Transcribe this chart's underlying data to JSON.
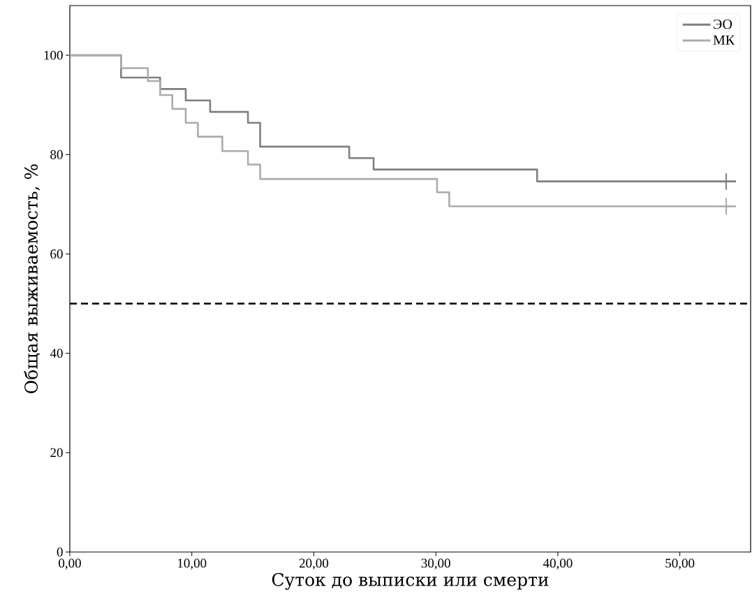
{
  "chart_data": {
    "type": "step",
    "xlabel": "Суток до выписки или смерти",
    "ylabel": "Общая выживаемость, %",
    "xlim": [
      0,
      55.8
    ],
    "ylim": [
      0,
      110
    ],
    "xticks": [
      {
        "value": 0,
        "label": "0,00"
      },
      {
        "value": 10,
        "label": "10,00"
      },
      {
        "value": 20,
        "label": "20,00"
      },
      {
        "value": 30,
        "label": "30,00"
      },
      {
        "value": 40,
        "label": "40,00"
      },
      {
        "value": 50,
        "label": "50,00"
      }
    ],
    "yticks": [
      0,
      20,
      40,
      60,
      80,
      100
    ],
    "series": [
      {
        "name": "ЭО",
        "color": "#7f7f7f",
        "x": [
          0,
          4.2,
          7.4,
          9.5,
          11.5,
          14.6,
          15.6,
          22.9,
          24.9,
          38.3,
          54.6
        ],
        "values": [
          100,
          95.5,
          93.2,
          90.9,
          88.6,
          86.4,
          81.6,
          79.3,
          77.0,
          74.6,
          74.6
        ]
      },
      {
        "name": "МК",
        "color": "#ababab",
        "x": [
          0,
          4.2,
          6.4,
          7.4,
          8.4,
          9.5,
          10.5,
          12.5,
          14.6,
          15.6,
          30.1,
          31.1,
          54.6
        ],
        "values": [
          100,
          97.4,
          94.8,
          92.0,
          89.2,
          86.4,
          83.6,
          80.7,
          78.0,
          75.1,
          72.4,
          69.6,
          69.6
        ]
      },
      {
        "type": "scatter",
        "marker": "cross",
        "color": "#7f7f7f",
        "x": [
          53.8
        ],
        "values": [
          74.6
        ]
      },
      {
        "type": "scatter",
        "marker": "cross",
        "color": "#ababab",
        "x": [
          53.8
        ],
        "values": [
          69.6
        ]
      }
    ],
    "ref_lines": [
      {
        "axis": "y",
        "value": 50,
        "color": "#000000",
        "line_style": "dashed"
      }
    ],
    "legend": "top right"
  }
}
